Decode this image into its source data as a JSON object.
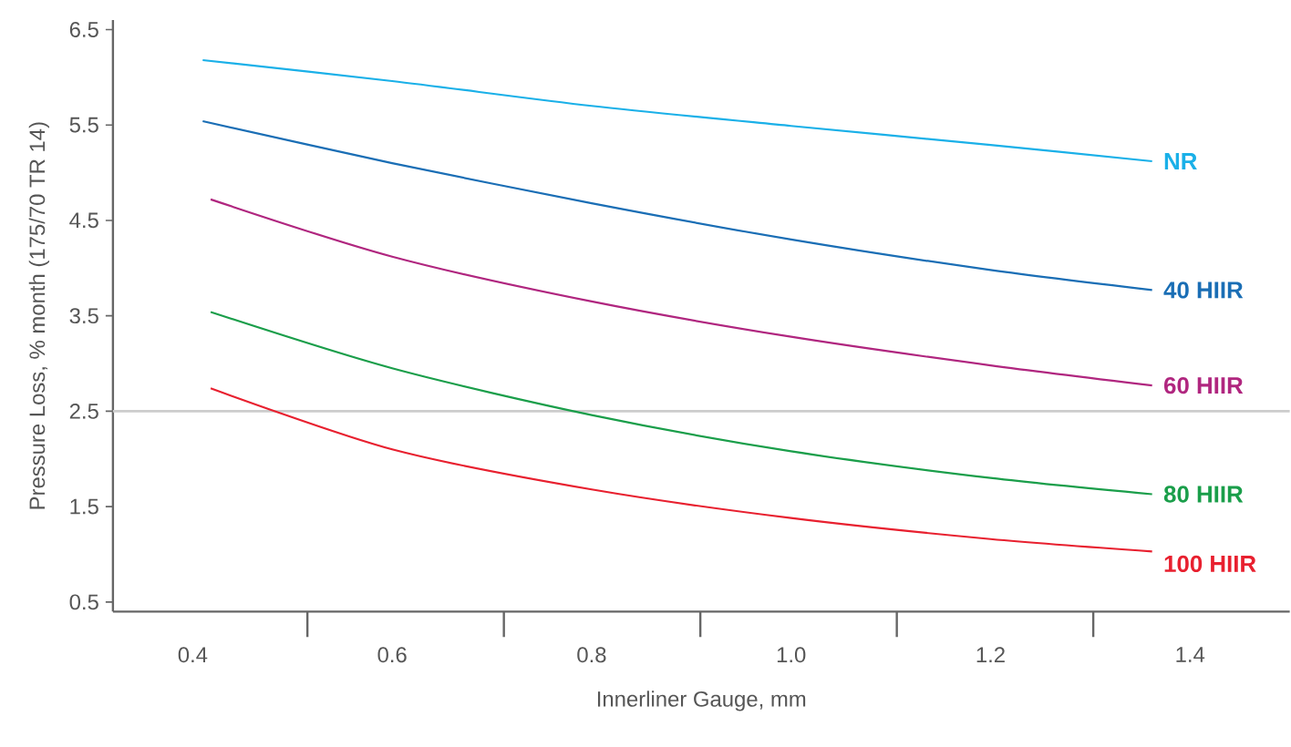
{
  "chart_data": {
    "type": "line",
    "xlabel": "Innerliner Gauge, mm",
    "ylabel": "Pressure Loss, % month (175/70 TR 14)",
    "xlim": [
      0.32,
      1.5
    ],
    "ylim": [
      0.4,
      6.6
    ],
    "xticks": [
      0.4,
      0.6,
      0.8,
      {
        "value": 1,
        "label": "1.0"
      },
      1.2,
      1.4,
      {
        "value": 0.515,
        "label": null
      },
      {
        "value": 0.712,
        "label": null
      },
      {
        "value": 0.909,
        "label": null
      },
      {
        "value": 1.106,
        "label": null
      },
      {
        "value": 1.303,
        "label": null
      }
    ],
    "yticks": [
      0.5,
      1.5,
      2.5,
      3.5,
      4.5,
      5.5,
      6.5
    ],
    "x": [
      0.41,
      0.6,
      0.8,
      1.0,
      1.2,
      1.362
    ],
    "ref_lines": [
      {
        "axis": "y",
        "value": 2.5,
        "color": "#cccccc"
      }
    ],
    "series": [
      {
        "name": "NR",
        "color": "#1ab0e8",
        "values": [
          6.18,
          5.96,
          5.7,
          5.49,
          5.29,
          5.12
        ]
      },
      {
        "name": "40 HIIR",
        "color": "#1a6eb5",
        "values": [
          5.54,
          5.1,
          4.68,
          4.3,
          3.98,
          3.77
        ]
      },
      {
        "name": "60 HIIR",
        "color": "#b0267f",
        "x": [
          0.418,
          0.6,
          0.8,
          1.0,
          1.2,
          1.362
        ],
        "values": [
          4.72,
          4.12,
          3.65,
          3.28,
          2.98,
          2.77
        ]
      },
      {
        "name": "80 HIIR",
        "color": "#1a9e4a",
        "x": [
          0.418,
          0.6,
          0.8,
          1.0,
          1.2,
          1.362
        ],
        "values": [
          3.54,
          2.95,
          2.46,
          2.08,
          1.8,
          1.63
        ]
      },
      {
        "name": "100 HIIR",
        "color": "#e8202f",
        "x": [
          0.418,
          0.6,
          0.8,
          1.0,
          1.2,
          1.362
        ],
        "values": [
          2.74,
          2.1,
          1.68,
          1.38,
          1.16,
          1.03
        ]
      }
    ],
    "grid": false,
    "legend": false
  }
}
